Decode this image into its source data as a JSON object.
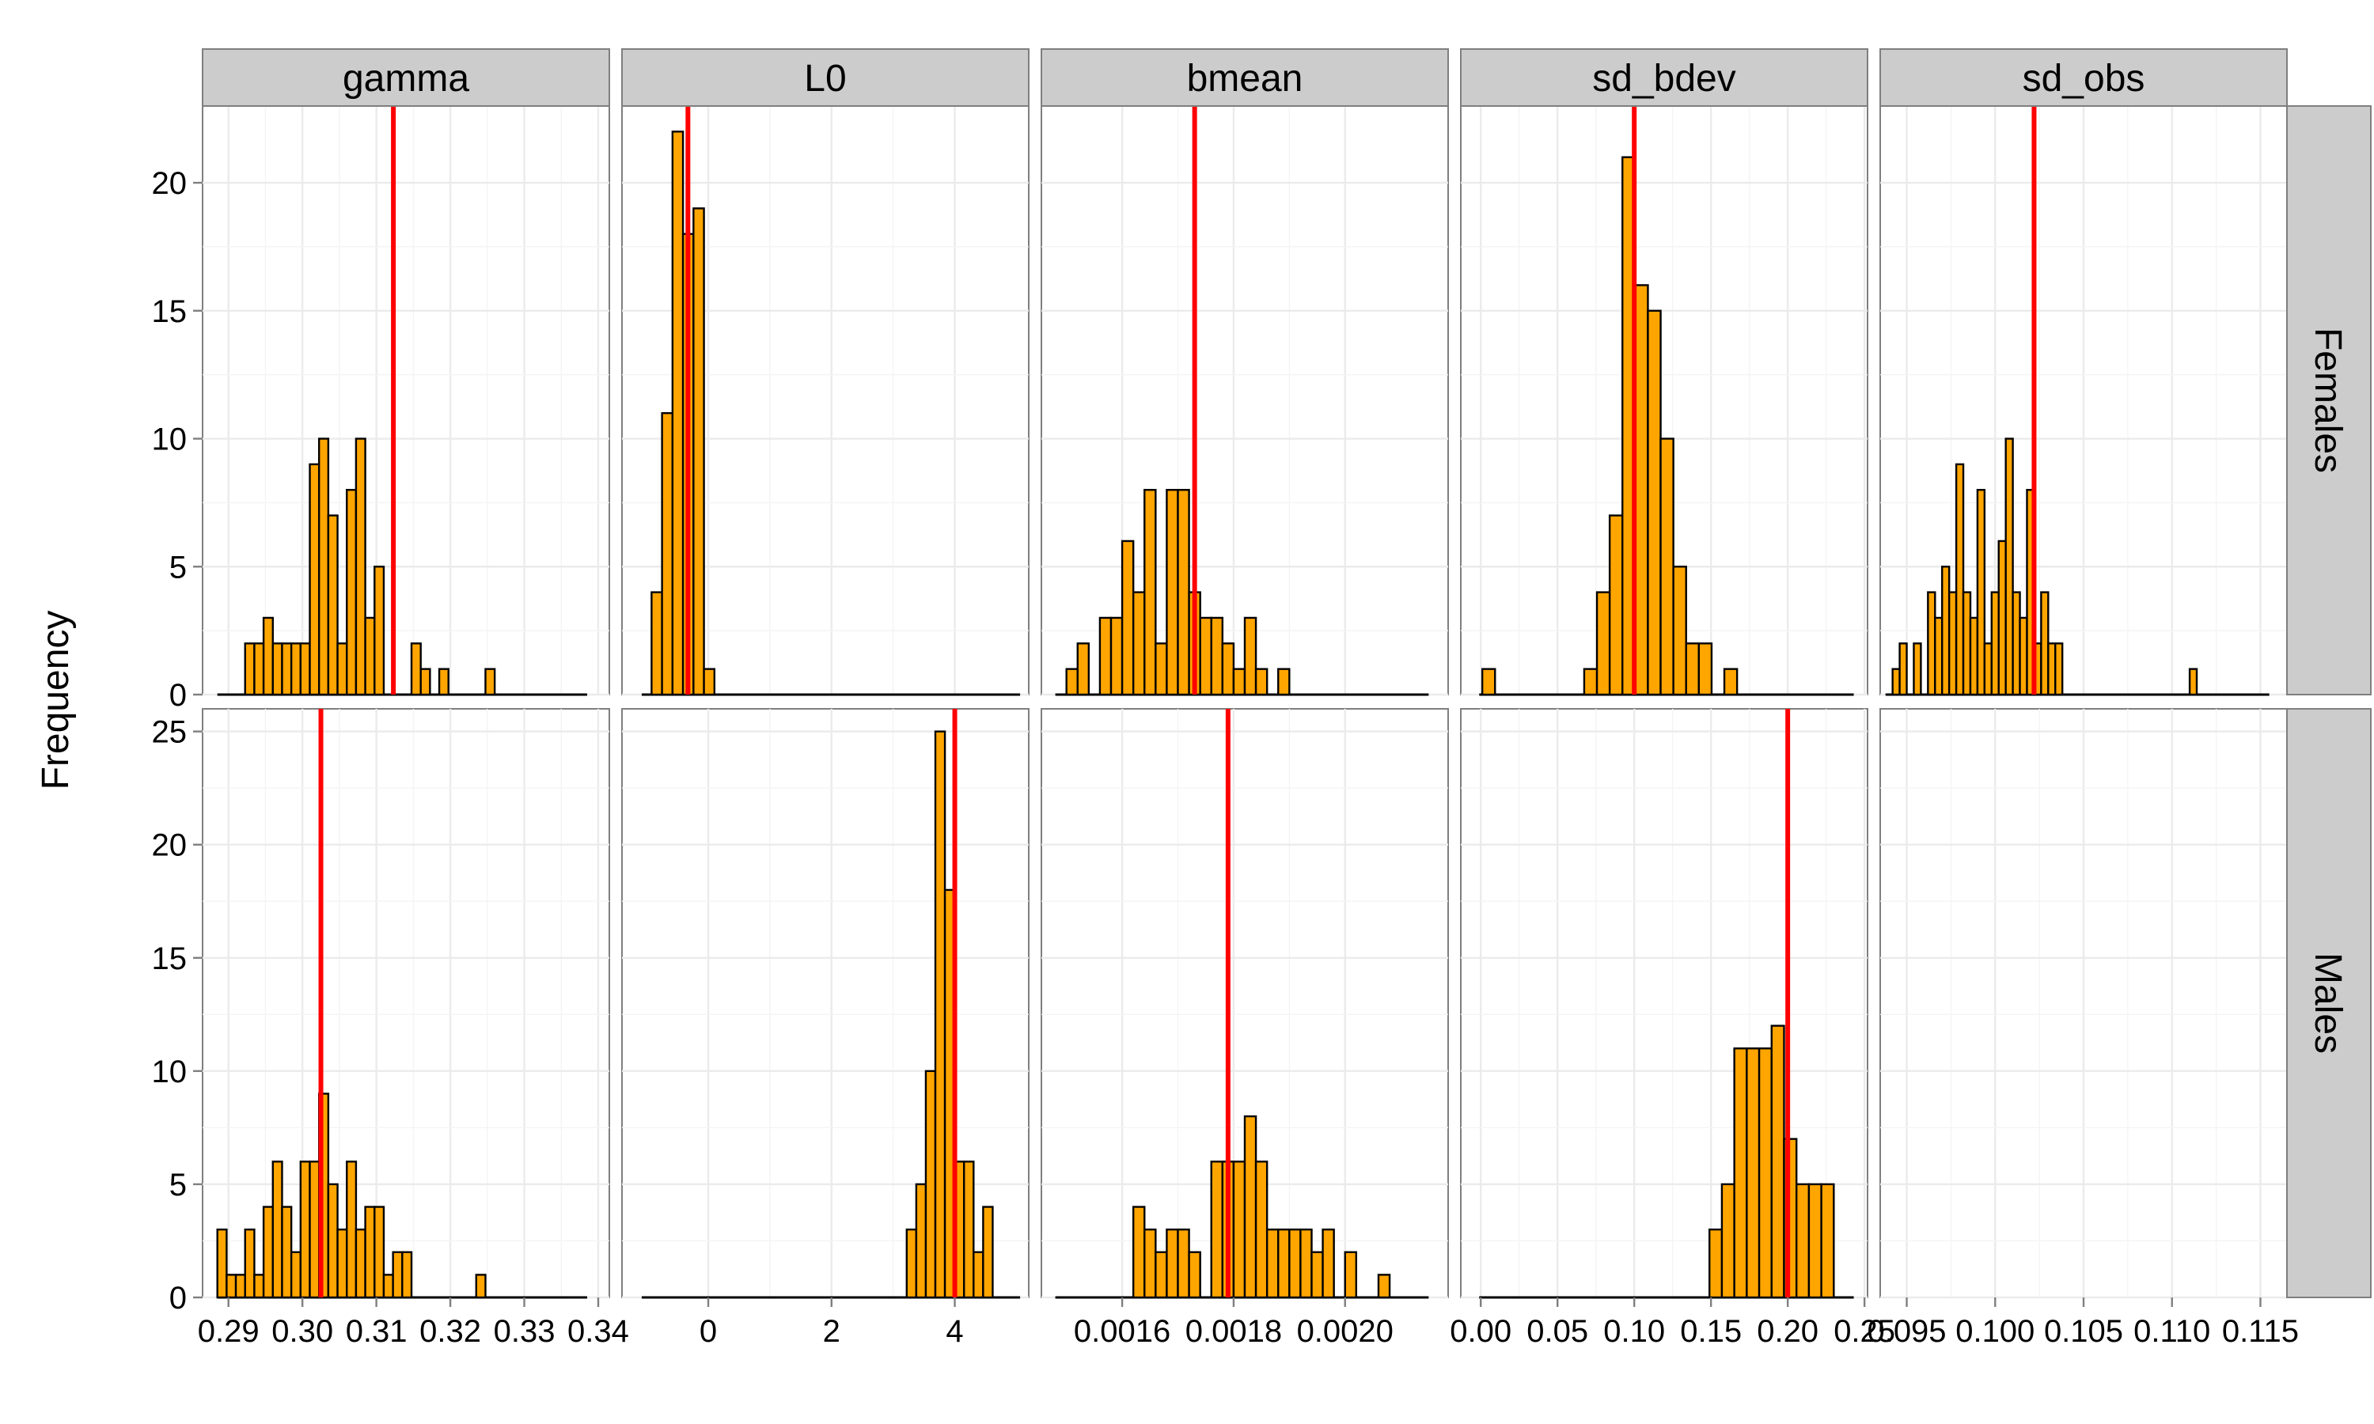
{
  "chart_data": {
    "type": "bar",
    "ylabel": "Frequency",
    "facet_cols": [
      "gamma",
      "L0",
      "bmean",
      "sd_bdev",
      "sd_obs"
    ],
    "facet_rows": [
      "Females",
      "Males"
    ],
    "bar_fill": "#FFA500",
    "bar_stroke": "#000000",
    "vline_color": "#FF0000",
    "strip_color": "#CCCCCC",
    "grid_color": "#EBEBEB",
    "rows": [
      {
        "ylim": [
          0,
          23
        ],
        "yticks": [
          0,
          5,
          10,
          15,
          20
        ],
        "ytick_labels": [
          "0",
          "5",
          "10",
          "15",
          "20"
        ]
      },
      {
        "ylim": [
          0,
          26
        ],
        "yticks": [
          0,
          5,
          10,
          15,
          20,
          25
        ],
        "ytick_labels": [
          "0",
          "5",
          "10",
          "15",
          "20",
          "25"
        ]
      }
    ],
    "columns": [
      {
        "xlim": [
          0.2865,
          0.3415
        ],
        "xticks": [
          0.29,
          0.3,
          0.31,
          0.32,
          0.33,
          0.34
        ],
        "xtick_labels": [
          "0.29",
          "0.30",
          "0.31",
          "0.32",
          "0.33",
          "0.34"
        ],
        "baseline": [
          0.2885,
          0.3385
        ]
      },
      {
        "xlim": [
          -1.4,
          5.2
        ],
        "xticks": [
          0,
          2,
          4
        ],
        "xtick_labels": [
          "0",
          "2",
          "4"
        ],
        "baseline": [
          -1.08,
          5.06
        ]
      },
      {
        "xlim": [
          0.001455,
          0.002185
        ],
        "xticks": [
          0.0016,
          0.0018,
          0.002
        ],
        "xtick_labels": [
          "0.0016",
          "0.0018",
          "0.0020"
        ],
        "baseline": [
          0.00148,
          0.00215
        ]
      },
      {
        "xlim": [
          -0.013,
          0.252
        ],
        "xticks": [
          0.0,
          0.05,
          0.1,
          0.15,
          0.2,
          0.25
        ],
        "xtick_labels": [
          "0.00",
          "0.05",
          "0.10",
          "0.15",
          "0.20",
          "0.25"
        ],
        "baseline": [
          -0.001,
          0.243
        ]
      },
      {
        "xlim": [
          0.0935,
          0.1165
        ],
        "xticks": [
          0.095,
          0.1,
          0.105,
          0.11,
          0.115
        ],
        "xtick_labels": [
          "0.095",
          "0.100",
          "0.105",
          "0.110",
          "0.115"
        ],
        "baseline": [
          0.0938,
          0.1155
        ]
      }
    ],
    "panels": [
      {
        "row": "Females",
        "col": "gamma",
        "bin_start": 0.2885,
        "bin_width": 0.00125,
        "counts": [
          0,
          0,
          0,
          2,
          2,
          3,
          2,
          2,
          2,
          2,
          9,
          10,
          7,
          2,
          8,
          10,
          3,
          5,
          0,
          0,
          0,
          2,
          1,
          0,
          1,
          0,
          0,
          0,
          0,
          1,
          0,
          0,
          0,
          0,
          0,
          0,
          0,
          0,
          0,
          0
        ],
        "vline": 0.3123
      },
      {
        "row": "Females",
        "col": "L0",
        "bin_start": -0.92,
        "bin_width": 0.17,
        "counts": [
          4,
          11,
          22,
          18,
          19,
          1
        ],
        "vline": -0.33
      },
      {
        "row": "Females",
        "col": "bmean",
        "bin_start": 0.0015,
        "bin_width": 2e-05,
        "counts": [
          1,
          2,
          0,
          3,
          3,
          6,
          4,
          8,
          2,
          8,
          8,
          4,
          3,
          3,
          2,
          1,
          3,
          1,
          0,
          1
        ],
        "vline": 0.00173
      },
      {
        "row": "Females",
        "col": "sd_bdev",
        "bin_start": 0.001,
        "bin_width": 0.0083,
        "counts": [
          1,
          0,
          0,
          0,
          0,
          0,
          0,
          0,
          1,
          4,
          7,
          21,
          16,
          15,
          10,
          5,
          2,
          2,
          0,
          1
        ],
        "vline": 0.1
      },
      {
        "row": "Females",
        "col": "sd_obs",
        "bin_start": 0.0942,
        "bin_width": 0.0004,
        "counts": [
          1,
          2,
          0,
          2,
          0,
          4,
          3,
          5,
          4,
          9,
          4,
          3,
          8,
          2,
          4,
          6,
          10,
          4,
          3,
          8,
          2,
          4,
          2,
          2,
          0,
          0,
          0,
          0,
          0,
          0,
          0,
          0,
          0,
          0,
          0,
          0,
          0,
          0,
          0,
          0,
          0,
          0,
          1
        ],
        "vline": 0.1022
      },
      {
        "row": "Males",
        "col": "gamma",
        "bin_start": 0.2885,
        "bin_width": 0.00125,
        "counts": [
          3,
          1,
          1,
          3,
          1,
          4,
          6,
          4,
          2,
          6,
          6,
          9,
          5,
          3,
          6,
          3,
          4,
          4,
          1,
          2,
          2,
          0,
          0,
          0,
          0,
          0,
          0,
          0,
          1,
          0
        ],
        "vline": 0.3025
      },
      {
        "row": "Males",
        "col": "L0",
        "bin_start": 3.22,
        "bin_width": 0.155,
        "counts": [
          3,
          5,
          10,
          25,
          18,
          6,
          6,
          2,
          4
        ],
        "vline": 4.0
      },
      {
        "row": "Males",
        "col": "bmean",
        "bin_start": 0.00162,
        "bin_width": 2e-05,
        "counts": [
          4,
          3,
          2,
          3,
          3,
          2,
          0,
          6,
          6,
          6,
          8,
          6,
          3,
          3,
          3,
          3,
          2,
          3,
          0,
          2,
          0,
          0,
          1
        ],
        "vline": 0.00179
      },
      {
        "row": "Males",
        "col": "sd_bdev",
        "bin_start": 0.149,
        "bin_width": 0.0081,
        "counts": [
          3,
          5,
          11,
          11,
          11,
          12,
          7,
          5,
          5,
          5
        ],
        "vline": 0.2
      }
    ]
  }
}
